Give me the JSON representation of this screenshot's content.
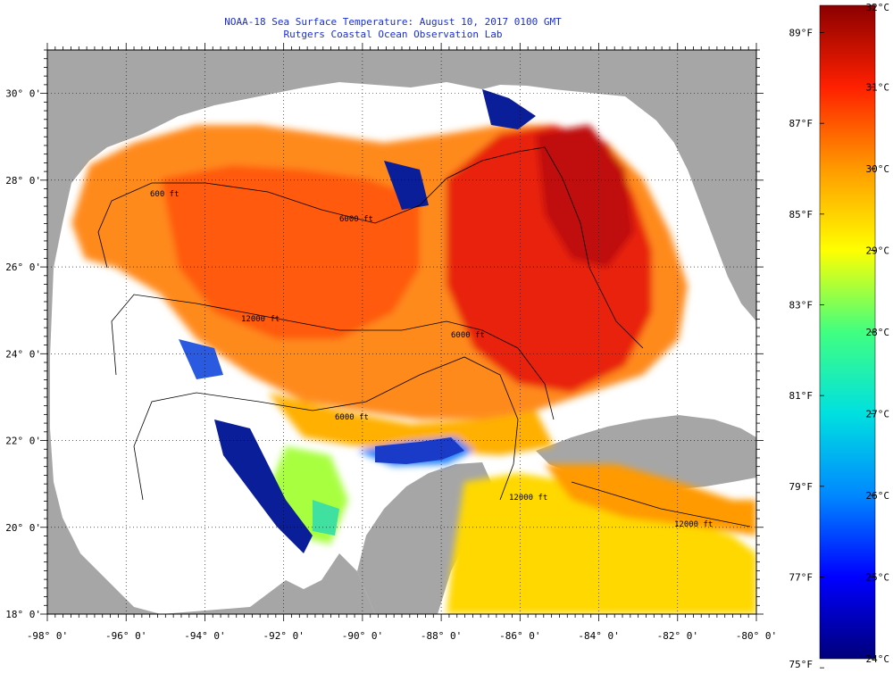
{
  "title": {
    "line1": "NOAA-18 Sea Surface Temperature:  August 10, 2017 0100 GMT",
    "line2": "Rutgers Coastal Ocean Observation Lab"
  },
  "map": {
    "lon_range": [
      -98,
      -80
    ],
    "lat_range": [
      18,
      31
    ],
    "lon_ticks": [
      "-98° 0'",
      "-96° 0'",
      "-94° 0'",
      "-92° 0'",
      "-90° 0'",
      "-88° 0'",
      "-86° 0'",
      "-84° 0'",
      "-82° 0'",
      "-80° 0'"
    ],
    "lat_ticks": [
      "30° 0'",
      "28° 0'",
      "26° 0'",
      "24° 0'",
      "22° 0'",
      "20° 0'",
      "18° 0'"
    ],
    "contour_labels": [
      "600 ft",
      "6000 ft",
      "12000 ft",
      "6000 ft",
      "6000 ft",
      "12000 ft",
      "12000 ft"
    ],
    "colors": {
      "land": "#a6a6a6",
      "no_data": "#ffffff",
      "grid": "#000000"
    }
  },
  "colorbar": {
    "celsius_labels": [
      "32°C",
      "31°C",
      "30°C",
      "29°C",
      "28°C",
      "27°C",
      "26°C",
      "25°C",
      "24°C"
    ],
    "fahrenheit_labels": [
      "89°F",
      "87°F",
      "85°F",
      "83°F",
      "81°F",
      "79°F",
      "77°F",
      "75°F"
    ],
    "min_c": 24,
    "max_c": 32,
    "stops": [
      "#00007a",
      "#0000ff",
      "#0088ff",
      "#00e0e0",
      "#40ff80",
      "#ffff00",
      "#ff9a00",
      "#ff2000",
      "#8b0000"
    ]
  }
}
